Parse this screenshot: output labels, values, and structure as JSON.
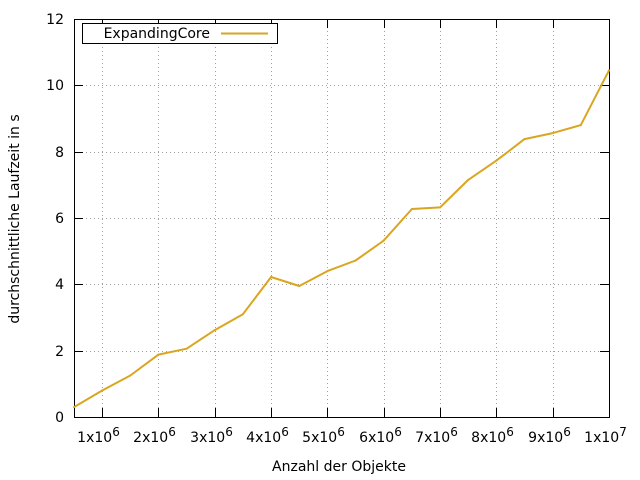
{
  "chart_data": {
    "type": "line",
    "title": "",
    "xlabel": "Anzahl der Objekte",
    "ylabel": "durchschnittliche Laufzeit in s",
    "xlim": [
      500000,
      10000000
    ],
    "ylim": [
      0,
      12
    ],
    "grid": true,
    "legend_position": "top-left",
    "x_ticks": [
      {
        "value": 1000000,
        "mantissa": "1x10",
        "exp": "6"
      },
      {
        "value": 2000000,
        "mantissa": "2x10",
        "exp": "6"
      },
      {
        "value": 3000000,
        "mantissa": "3x10",
        "exp": "6"
      },
      {
        "value": 4000000,
        "mantissa": "4x10",
        "exp": "6"
      },
      {
        "value": 5000000,
        "mantissa": "5x10",
        "exp": "6"
      },
      {
        "value": 6000000,
        "mantissa": "6x10",
        "exp": "6"
      },
      {
        "value": 7000000,
        "mantissa": "7x10",
        "exp": "6"
      },
      {
        "value": 8000000,
        "mantissa": "8x10",
        "exp": "6"
      },
      {
        "value": 9000000,
        "mantissa": "9x10",
        "exp": "6"
      },
      {
        "value": 10000000,
        "mantissa": "1x10",
        "exp": "7"
      }
    ],
    "y_ticks": [
      {
        "value": 0,
        "label": "0"
      },
      {
        "value": 2,
        "label": "2"
      },
      {
        "value": 4,
        "label": "4"
      },
      {
        "value": 6,
        "label": "6"
      },
      {
        "value": 8,
        "label": "8"
      },
      {
        "value": 10,
        "label": "10"
      },
      {
        "value": 12,
        "label": "12"
      }
    ],
    "series": [
      {
        "name": "ExpandingCore",
        "color": "#daa520",
        "x": [
          500000,
          1000000,
          1500000,
          2000000,
          2500000,
          3000000,
          3500000,
          4000000,
          4500000,
          5000000,
          5500000,
          6000000,
          6500000,
          7000000,
          7500000,
          8000000,
          8500000,
          9000000,
          9500000,
          10000000
        ],
        "values": [
          0.3,
          0.8,
          1.25,
          1.88,
          2.06,
          2.62,
          3.1,
          4.22,
          3.95,
          4.4,
          4.72,
          5.32,
          6.27,
          6.32,
          7.15,
          7.73,
          8.38,
          8.56,
          8.8,
          10.45
        ]
      }
    ]
  }
}
